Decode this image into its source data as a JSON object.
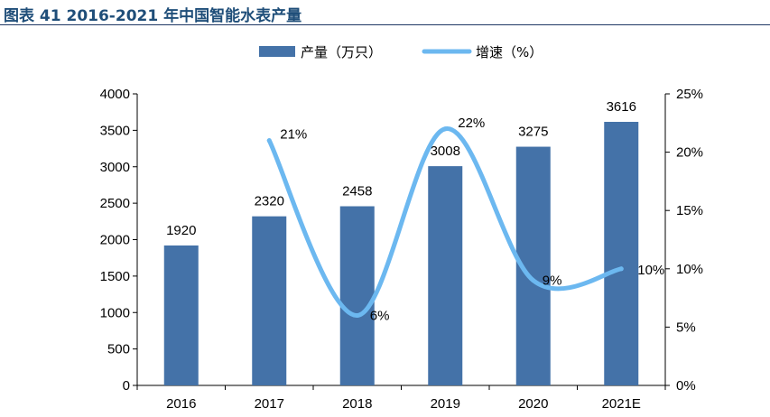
{
  "title": "图表 41 2016-2021 年中国智能水表产量",
  "chart_data": {
    "type": "bar",
    "categories": [
      "2016",
      "2017",
      "2018",
      "2019",
      "2020",
      "2021E"
    ],
    "series": [
      {
        "name": "产量（万只）",
        "type": "bar",
        "axis": "left",
        "values": [
          1920,
          2320,
          2458,
          3008,
          3275,
          3616
        ],
        "labels": [
          "1920",
          "2320",
          "2458",
          "3008",
          "3275",
          "3616"
        ]
      },
      {
        "name": "增速（%）",
        "type": "line",
        "axis": "right",
        "smooth": true,
        "values": [
          null,
          21,
          6,
          22,
          9,
          10
        ],
        "labels": [
          "",
          "21%",
          "6%",
          "22%",
          "9%",
          "10%"
        ]
      }
    ],
    "y_left": {
      "min": 0,
      "max": 4000,
      "step": 500
    },
    "y_right": {
      "min": 0,
      "max": 25,
      "step": 5,
      "suffix": "%"
    },
    "legend_position": "top-center",
    "grid": false,
    "colors": {
      "bar": "#4472a8",
      "line": "#6cb8f0"
    }
  }
}
